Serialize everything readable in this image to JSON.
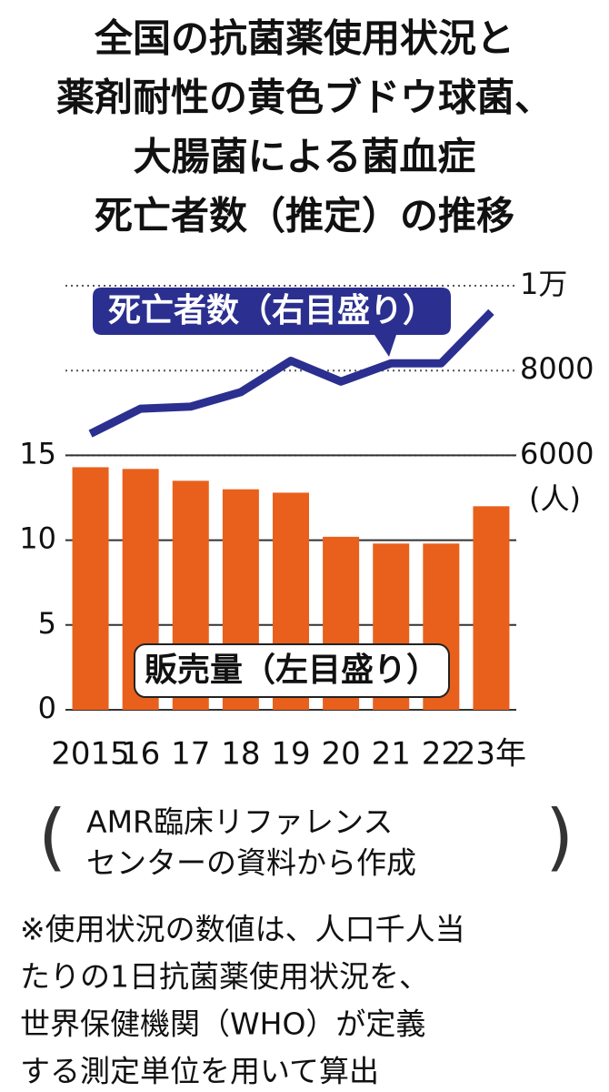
{
  "chart_data": {
    "type": "bar",
    "title": [
      "全国の抗菌薬使用状況と",
      "薬剤耐性の黄色ブドウ球菌、",
      "大腸菌による菌血症",
      "死亡者数（推定）の推移"
    ],
    "categories": [
      "2015",
      "16",
      "17",
      "18",
      "19",
      "20",
      "21",
      "22",
      "23年"
    ],
    "series": [
      {
        "name": "販売量（左目盛り）",
        "type": "bar",
        "color": "#e8601c",
        "values": [
          14.3,
          14.2,
          13.5,
          13.0,
          12.8,
          10.2,
          9.8,
          9.8,
          12.0
        ]
      },
      {
        "name": "死亡者数（右目盛り）",
        "type": "line",
        "axis": "y2",
        "color": "#2b2f8f",
        "values": [
          6510,
          7100,
          7150,
          7490,
          8230,
          7740,
          8170,
          8170,
          9380
        ]
      }
    ],
    "ylim": [
      0,
      25
    ],
    "yticks": [
      0,
      5,
      10,
      15
    ],
    "y2lim": [
      0,
      10000
    ],
    "y2ticks": [
      6000,
      8000,
      {
        "value": 10000,
        "label": "1万"
      }
    ],
    "y2label": "(人)",
    "source": [
      "AMR臨床リファレンス",
      "センターの資料から作成"
    ],
    "note": [
      "※使用状況の数値は、人口千人当",
      "たりの1日抗菌薬使用状況を、",
      "世界保健機関（WHO）が定義",
      "する測定単位を用いて算出"
    ]
  }
}
